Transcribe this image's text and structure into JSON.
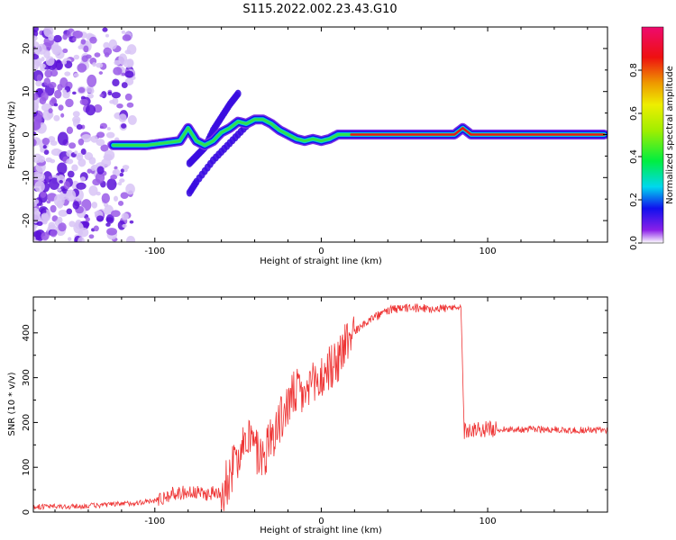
{
  "title": "S115.2022.002.23.43.G10",
  "chart_data": [
    {
      "type": "heatmap",
      "xlabel": "Height of straight line (km)",
      "ylabel": "Frequency (Hz)",
      "xlim": [
        -173,
        172
      ],
      "ylim": [
        -25,
        25
      ],
      "x_ticks": [
        -100,
        0,
        100
      ],
      "y_ticks": [
        -20,
        -10,
        0,
        10,
        20
      ],
      "colorbar": {
        "label": "Normalized spectral amplitude",
        "range": [
          0,
          1
        ],
        "ticks": [
          0.0,
          0.2,
          0.4,
          0.6,
          0.8
        ]
      },
      "ridge": {
        "description": "dominant spectral ridge (frequency in Hz vs height in km)",
        "x": [
          -125,
          -115,
          -105,
          -95,
          -85,
          -80,
          -75,
          -70,
          -65,
          -60,
          -55,
          -50,
          -45,
          -40,
          -35,
          -30,
          -25,
          -20,
          -15,
          -10,
          -5,
          0,
          5,
          10,
          20,
          40,
          60,
          80,
          85,
          90,
          95,
          120,
          150,
          170
        ],
        "y": [
          -2.5,
          -2.5,
          -2.5,
          -2.0,
          -1.5,
          1.5,
          -1.5,
          -2.5,
          -1.5,
          0.5,
          1.5,
          3.0,
          2.5,
          3.5,
          3.5,
          2.5,
          1.0,
          0.0,
          -1.0,
          -1.5,
          -1.0,
          -1.5,
          -1.0,
          0.0,
          0.0,
          0.0,
          0.0,
          0.0,
          1.5,
          0.0,
          0.0,
          0.0,
          0.0,
          0.0
        ]
      },
      "branches": [
        {
          "x": [
            -50,
            -55,
            -60,
            -65,
            -70,
            -75,
            -80
          ],
          "y": [
            9.5,
            7.0,
            4.0,
            1.0,
            -3.0,
            -5.0,
            -7.0
          ]
        },
        {
          "x": [
            -45,
            -55,
            -65,
            -75,
            -80
          ],
          "y": [
            2.0,
            -2.0,
            -6.0,
            -11.0,
            -14.0
          ]
        }
      ]
    },
    {
      "type": "line",
      "xlabel": "Height of straight line (km)",
      "ylabel": "SNR (10 * v/v)",
      "xlim": [
        -173,
        172
      ],
      "ylim": [
        0,
        480
      ],
      "x_ticks": [
        -100,
        0,
        100
      ],
      "y_ticks": [
        0,
        100,
        200,
        300,
        400
      ],
      "color": "#ee3333",
      "series": [
        {
          "x": [
            -173,
            -150,
            -120,
            -100,
            -90,
            -80,
            -70,
            -60,
            -55,
            -50,
            -45,
            -40,
            -35,
            -30,
            -25,
            -20,
            -15,
            -10,
            -5,
            0,
            5,
            10,
            15,
            20,
            25,
            30,
            35,
            40,
            50,
            60,
            70,
            80,
            84,
            86,
            90,
            100,
            110,
            130,
            150,
            172
          ],
          "y": [
            12,
            12,
            18,
            25,
            40,
            45,
            40,
            45,
            80,
            130,
            180,
            140,
            120,
            170,
            200,
            240,
            270,
            260,
            280,
            300,
            320,
            340,
            380,
            400,
            420,
            430,
            440,
            450,
            455,
            455,
            455,
            455,
            455,
            180,
            185,
            185,
            185,
            185,
            183,
            183
          ]
        }
      ]
    }
  ]
}
